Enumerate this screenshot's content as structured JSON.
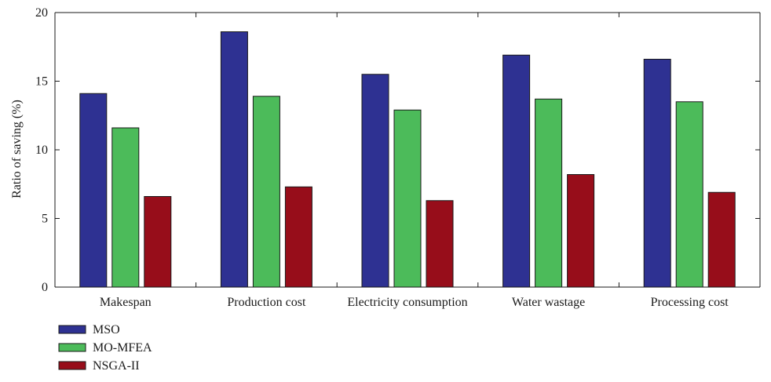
{
  "chart_data": {
    "type": "bar",
    "title": "",
    "xlabel": "",
    "ylabel": "Ratio of saving (%)",
    "ylim": [
      0,
      20
    ],
    "yticks": [
      0,
      5,
      10,
      15,
      20
    ],
    "grid": false,
    "legend_position": "bottom-left",
    "categories": [
      "Makespan",
      "Production cost",
      "Electricity consumption",
      "Water wastage",
      "Processing cost"
    ],
    "series": [
      {
        "name": "MSO",
        "color": "#2e3192",
        "values": [
          14.1,
          18.6,
          15.5,
          16.9,
          16.6
        ]
      },
      {
        "name": "MO-MFEA",
        "color": "#4cbb5a",
        "values": [
          11.6,
          13.9,
          12.9,
          13.7,
          13.5
        ]
      },
      {
        "name": "NSGA-II",
        "color": "#970d1a",
        "values": [
          6.6,
          7.3,
          6.3,
          8.2,
          6.9
        ]
      }
    ]
  }
}
